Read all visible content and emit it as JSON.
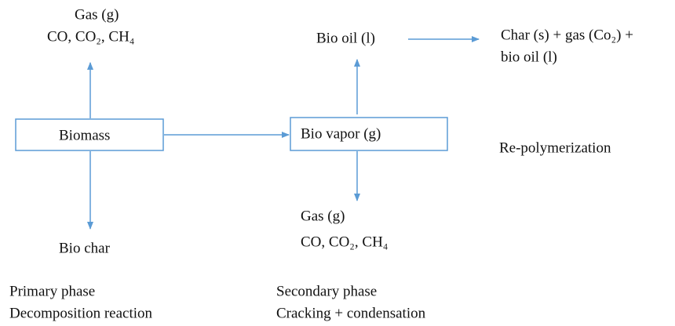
{
  "nodes": [
    {
      "label": "Biomass"
    },
    {
      "label": "Bio vapor (g)"
    }
  ],
  "labels": {
    "gas_primary": [
      "Gas (g)",
      "CO, CO₂, CH₄"
    ],
    "bio_char": "Bio char",
    "bio_oil": "Bio oil (l)",
    "products": [
      "Char (s) + gas (Co₂) +",
      "bio oil (l)"
    ],
    "repolymerization": "Re-polymerization",
    "gas_secondary": [
      "Gas (g)",
      "CO, CO₂, CH₄"
    ]
  },
  "phases": [
    {
      "name": "Primary phase",
      "reaction": "Decomposition reaction"
    },
    {
      "name": "Secondary phase",
      "reaction": "Cracking + condensation"
    }
  ]
}
